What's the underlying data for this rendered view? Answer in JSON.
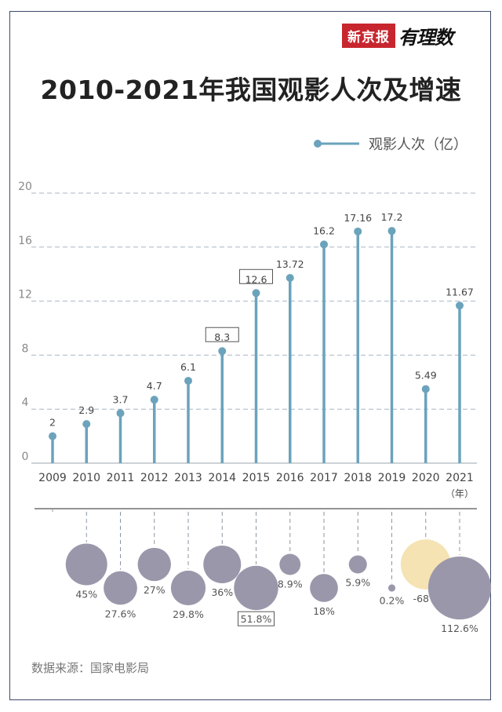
{
  "brand": {
    "name": "新京报",
    "sub": "有理数"
  },
  "title": "2010-2021年我国观影人次及增速",
  "legend": {
    "label": "观影人次（亿）"
  },
  "source": "数据来源：国家电影局",
  "x_unit": "（年）",
  "colors": {
    "line": "#6ba3bc",
    "bubble": "#9b97ab",
    "bubble_negative": "#f5e3b3",
    "frame": "#3d4a6b",
    "grid": "#a9b6c2"
  },
  "chart_data": {
    "type": "line",
    "subtype": "lollipop + growth bubbles",
    "categories": [
      "2009",
      "2010",
      "2011",
      "2012",
      "2013",
      "2014",
      "2015",
      "2016",
      "2017",
      "2018",
      "2019",
      "2020",
      "2021"
    ],
    "series": [
      {
        "name": "观影人次（亿）",
        "values": [
          2,
          2.9,
          3.7,
          4.7,
          6.1,
          8.3,
          12.6,
          13.72,
          16.2,
          17.16,
          17.2,
          5.49,
          11.67
        ]
      }
    ],
    "value_labels": [
      "2",
      "2.9",
      "3.7",
      "4.7",
      "6.1",
      "8.3",
      "12.6",
      "13.72",
      "16.2",
      "17.16",
      "17.2",
      "5.49",
      "11.67"
    ],
    "boxed_value_years": [
      "2014",
      "2015"
    ],
    "growth": {
      "categories": [
        "2010",
        "2011",
        "2012",
        "2013",
        "2014",
        "2015",
        "2016",
        "2017",
        "2018",
        "2019",
        "2020",
        "2021"
      ],
      "values": [
        45,
        27.6,
        27,
        29.8,
        36,
        51.8,
        8.9,
        18,
        5.9,
        0.2,
        -68,
        112.6
      ],
      "labels": [
        "45%",
        "27.6%",
        "27%",
        "29.8%",
        "36%",
        "51.8%",
        "8.9%",
        "18%",
        "5.9%",
        "0.2%",
        "-68%",
        "112.6%"
      ],
      "boxed_label_years": [
        "2015"
      ]
    },
    "yticks": [
      "0",
      "4",
      "8",
      "12",
      "16",
      "20"
    ],
    "ylim": [
      0,
      20
    ],
    "grid": true
  }
}
